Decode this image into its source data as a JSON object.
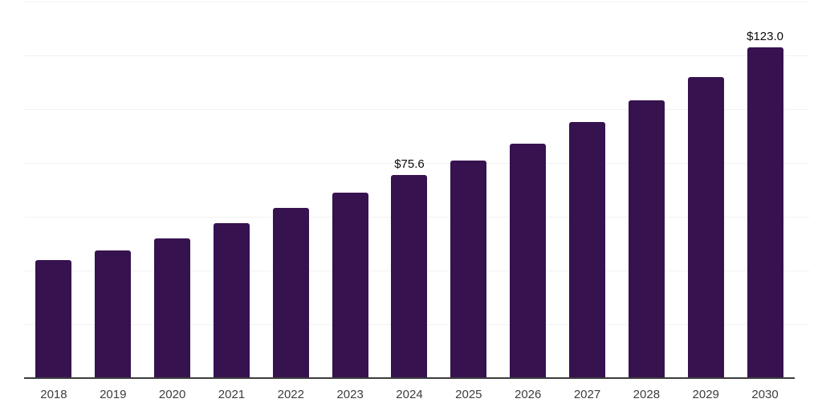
{
  "chart_data": {
    "type": "bar",
    "title": "",
    "xlabel": "",
    "ylabel": "",
    "categories": [
      "2018",
      "2019",
      "2020",
      "2021",
      "2022",
      "2023",
      "2024",
      "2025",
      "2026",
      "2027",
      "2028",
      "2029",
      "2030"
    ],
    "values": [
      43.8,
      47.5,
      51.8,
      57.6,
      63.2,
      69.0,
      75.6,
      80.9,
      87.1,
      95.2,
      103.3,
      112.0,
      123.0
    ],
    "data_labels": {
      "6": "$75.6",
      "12": "$123.0"
    },
    "value_prefix": "$",
    "ylim": [
      0,
      140
    ],
    "gridline_step": 20,
    "grid": "horizontal-only",
    "legend": "none",
    "colors": {
      "bar": "#36124f",
      "gridline": "#f2f2f3",
      "axis_line": "#3d3d3d",
      "tick_label": "#3d3d3d",
      "data_label": "#0b0b0b",
      "background": "#ffffff"
    }
  }
}
